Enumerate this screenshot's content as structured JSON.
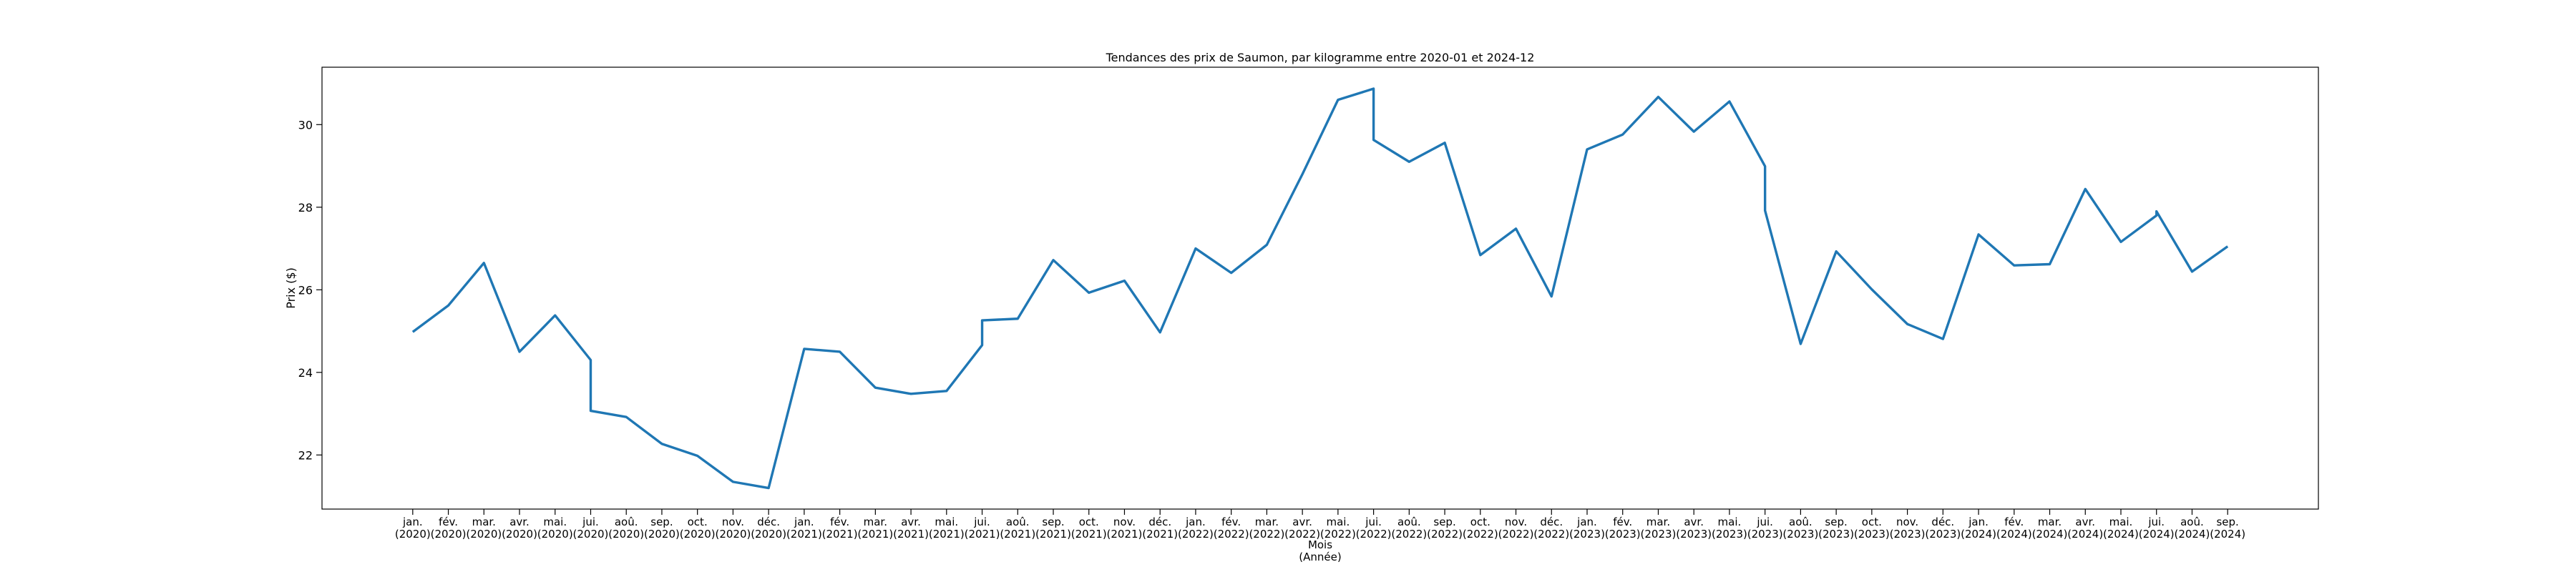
{
  "chart_data": {
    "type": "line",
    "title": "Tendances des prix de Saumon, par kilogramme entre 2020-01 et 2024-12",
    "xlabel": "Mois\n(Année)",
    "ylabel": "Prix ($)",
    "x": [
      "jan.\n(2020)",
      "fév.\n(2020)",
      "mar.\n(2020)",
      "avr.\n(2020)",
      "mai.\n(2020)",
      "jui.\n(2020)",
      "jui.\n(2020)",
      "aoû.\n(2020)",
      "sep.\n(2020)",
      "oct.\n(2020)",
      "nov.\n(2020)",
      "déc.\n(2020)",
      "jan.\n(2021)",
      "fév.\n(2021)",
      "mar.\n(2021)",
      "avr.\n(2021)",
      "mai.\n(2021)",
      "jui.\n(2021)",
      "jui.\n(2021)",
      "aoû.\n(2021)",
      "sep.\n(2021)",
      "oct.\n(2021)",
      "nov.\n(2021)",
      "déc.\n(2021)",
      "jan.\n(2022)",
      "fév.\n(2022)",
      "mar.\n(2022)",
      "avr.\n(2022)",
      "mai.\n(2022)",
      "jui.\n(2022)",
      "jui.\n(2022)",
      "aoû.\n(2022)",
      "sep.\n(2022)",
      "oct.\n(2022)",
      "nov.\n(2022)",
      "déc.\n(2022)",
      "jan.\n(2023)",
      "fév.\n(2023)",
      "mar.\n(2023)",
      "avr.\n(2023)",
      "mai.\n(2023)",
      "jui.\n(2023)",
      "jui.\n(2023)",
      "aoû.\n(2023)",
      "sep.\n(2023)",
      "oct.\n(2023)",
      "nov.\n(2023)",
      "déc.\n(2023)",
      "jan.\n(2024)",
      "fév.\n(2024)",
      "mar.\n(2024)",
      "avr.\n(2024)",
      "mai.\n(2024)",
      "jui.\n(2024)",
      "jui.\n(2024)",
      "aoû.\n(2024)",
      "sep.\n(2024)"
    ],
    "values": [
      24.98,
      25.62,
      26.65,
      24.5,
      25.38,
      24.3,
      23.07,
      22.92,
      22.27,
      21.98,
      21.35,
      21.2,
      24.57,
      24.5,
      23.63,
      23.48,
      23.55,
      24.66,
      25.26,
      25.3,
      26.72,
      25.93,
      26.22,
      24.97,
      27.0,
      26.41,
      27.09,
      28.8,
      30.6,
      30.87,
      29.63,
      29.1,
      29.56,
      26.84,
      27.48,
      25.84,
      29.4,
      29.76,
      30.67,
      29.83,
      30.56,
      28.99,
      27.92,
      24.69,
      26.93,
      26.01,
      25.17,
      24.81,
      27.34,
      26.59,
      26.62,
      28.44,
      27.16,
      27.8,
      27.9,
      26.44,
      27.05
    ],
    "color": "#1f77b4",
    "ylim": [
      20.69,
      31.39
    ],
    "yticks": [
      22,
      24,
      26,
      28,
      30
    ]
  }
}
